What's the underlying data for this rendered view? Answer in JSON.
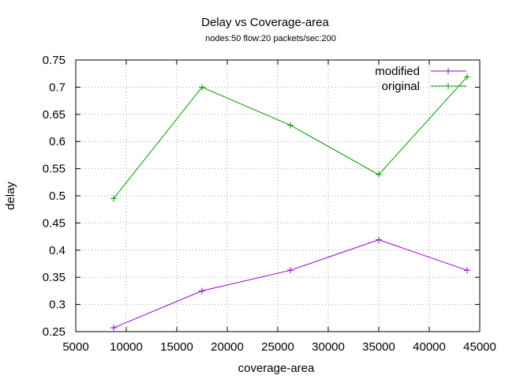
{
  "chart_data": {
    "type": "line",
    "title": "Delay vs Coverage-area",
    "subtitle": "nodes:50  flow:20  packets/sec:200",
    "xlabel": "coverage-area",
    "ylabel": "delay",
    "xlim": [
      5000,
      45000
    ],
    "ylim": [
      0.25,
      0.75
    ],
    "xticks": [
      5000,
      10000,
      15000,
      20000,
      25000,
      30000,
      35000,
      40000,
      45000
    ],
    "yticks": [
      0.25,
      0.3,
      0.35,
      0.4,
      0.45,
      0.5,
      0.55,
      0.6,
      0.65,
      0.7,
      0.75
    ],
    "xtick_labels": [
      "5000",
      "10000",
      "15000",
      "20000",
      "25000",
      "30000",
      "35000",
      "40000",
      "45000"
    ],
    "ytick_labels": [
      "0.25",
      "0.3",
      "0.35",
      "0.4",
      "0.45",
      "0.5",
      "0.55",
      "0.6",
      "0.65",
      "0.7",
      "0.75"
    ],
    "grid": true,
    "legend_position": "top-right",
    "series": [
      {
        "name": "modified",
        "color": "#9400d3",
        "marker": "plus",
        "x": [
          8750,
          17500,
          26250,
          35000,
          43750
        ],
        "y": [
          0.257,
          0.325,
          0.363,
          0.419,
          0.363
        ]
      },
      {
        "name": "original",
        "color": "#009e00",
        "marker": "plus",
        "x": [
          8750,
          17500,
          26250,
          35000,
          43750
        ],
        "y": [
          0.495,
          0.7,
          0.63,
          0.539,
          0.719
        ]
      }
    ]
  }
}
